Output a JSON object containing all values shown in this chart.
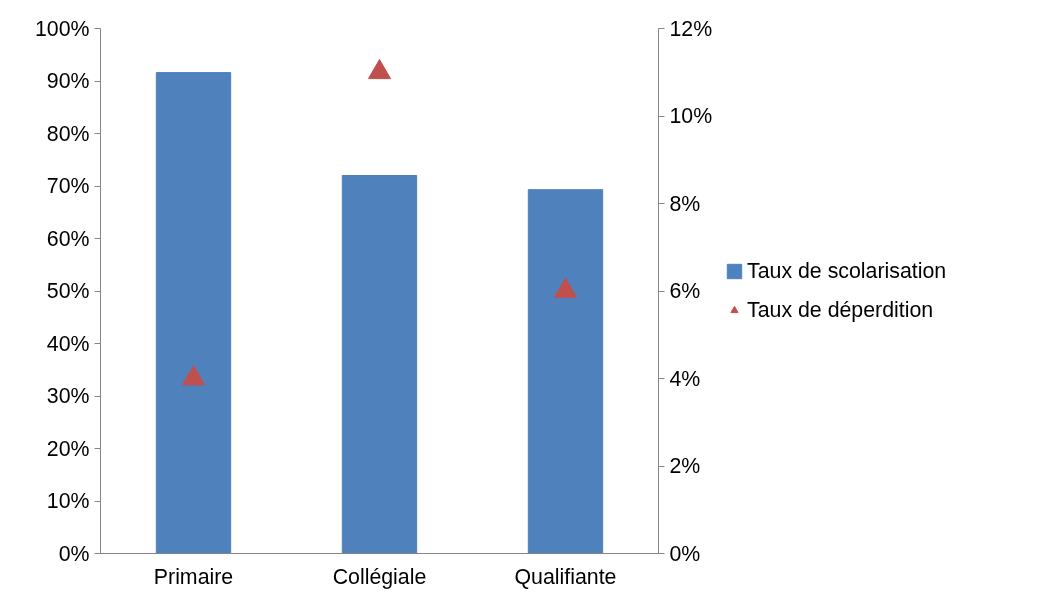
{
  "chart_data": {
    "type": "bar",
    "categories": [
      "Primaire",
      "Collégiale",
      "Qualifiante"
    ],
    "series": [
      {
        "name": "Taux de scolarisation",
        "color": "#4f81bd",
        "values": [
          91.6,
          72.0,
          69.3
        ]
      },
      {
        "name": "Taux de déperdition",
        "type": "scatter",
        "axis": "y2",
        "marker": "triangle",
        "color": "#c0504d",
        "values": [
          4.0,
          11.0,
          6.0
        ]
      }
    ],
    "ylim": [
      0,
      100
    ],
    "yticks": [
      {
        "value": 0,
        "label": "0%"
      },
      {
        "value": 10,
        "label": "10%"
      },
      {
        "value": 20,
        "label": "20%"
      },
      {
        "value": 30,
        "label": "30%"
      },
      {
        "value": 40,
        "label": "40%"
      },
      {
        "value": 50,
        "label": "50%"
      },
      {
        "value": 60,
        "label": "60%"
      },
      {
        "value": 70,
        "label": "70%"
      },
      {
        "value": 80,
        "label": "80%"
      },
      {
        "value": 90,
        "label": "90%"
      },
      {
        "value": 100,
        "label": "100%"
      }
    ],
    "y2lim": [
      0,
      12
    ],
    "y2ticks": [
      {
        "value": 0,
        "label": "0%"
      },
      {
        "value": 2,
        "label": "2%"
      },
      {
        "value": 4,
        "label": "4%"
      },
      {
        "value": 6,
        "label": "6%"
      },
      {
        "value": 8,
        "label": "8%"
      },
      {
        "value": 10,
        "label": "10%"
      },
      {
        "value": 12,
        "label": "12%"
      }
    ],
    "grid": false,
    "legend": "right"
  }
}
